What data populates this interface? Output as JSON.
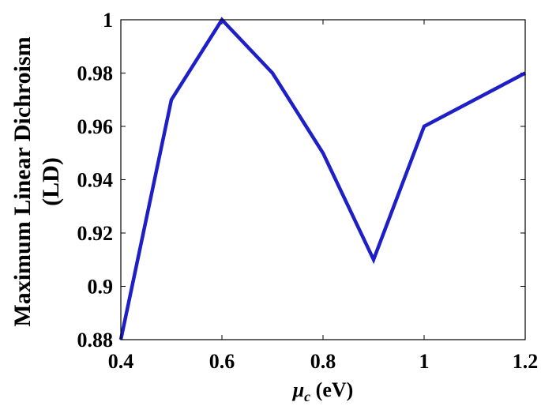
{
  "chart_data": {
    "type": "line",
    "x": [
      0.4,
      0.5,
      0.6,
      0.7,
      0.8,
      0.9,
      1.0,
      1.2
    ],
    "series": [
      {
        "values": [
          0.88,
          0.97,
          1.0,
          0.98,
          0.95,
          0.91,
          0.96,
          0.98
        ],
        "color": "#1f1fc8"
      }
    ],
    "xlim": [
      0.4,
      1.2
    ],
    "ylim": [
      0.88,
      1.0
    ],
    "xticks": [
      0.4,
      0.6,
      0.8,
      1.0,
      1.2
    ],
    "xtick_labels": [
      "0.4",
      "0.6",
      "0.8",
      "1",
      "1.2"
    ],
    "yticks": [
      0.88,
      0.9,
      0.92,
      0.94,
      0.96,
      0.98,
      1.0
    ],
    "ytick_labels": [
      "0.88",
      "0.9",
      "0.92",
      "0.94",
      "0.96",
      "0.98",
      "1"
    ],
    "ylabel_line1": "Maximum Linear Dichroism",
    "ylabel_line2": "(LD)",
    "xlabel_symbol": "μ",
    "xlabel_subscript": "c",
    "xlabel_unit": " (eV)",
    "grid": false,
    "legend": "none"
  }
}
